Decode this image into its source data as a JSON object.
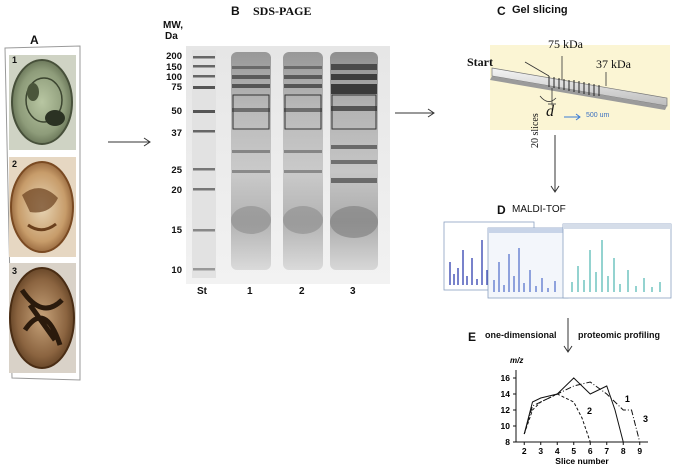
{
  "panel_a": {
    "letter": "A",
    "images": [
      {
        "label": "1"
      },
      {
        "label": "2"
      },
      {
        "label": "3"
      }
    ]
  },
  "panel_b": {
    "letter": "B",
    "title": "SDS-PAGE",
    "mw_label_line1": "MW,",
    "mw_label_line2": "Da",
    "mw_ticks": [
      "200",
      "150",
      "100",
      "75",
      "50",
      "37",
      "25",
      "20",
      "15",
      "10"
    ],
    "lanes": [
      "St",
      "1",
      "2",
      "3"
    ]
  },
  "panel_c": {
    "letter": "C",
    "title": "Gel slicing",
    "start_label": "Start",
    "kda_75": "75 kDa",
    "kda_37": "37 kDa",
    "d_label": "d",
    "scale_label": "500 um",
    "slices_label": "20 slices"
  },
  "panel_d": {
    "letter": "D",
    "title": "MALDI-TOF"
  },
  "panel_e": {
    "letter": "E",
    "label_left": "one-dimensional",
    "label_right": "proteomic profiling"
  },
  "chart_data": {
    "type": "line",
    "ylabel": "m/z",
    "xlabel": "Slice number",
    "x_ticks": [
      "2",
      "3",
      "4",
      "5",
      "6",
      "7",
      "8",
      "9"
    ],
    "y_ticks": [
      "8",
      "10",
      "12",
      "14",
      "16"
    ],
    "xlim": [
      1.5,
      9.5
    ],
    "ylim": [
      8,
      17
    ],
    "series": [
      {
        "name": "1",
        "x": [
          2,
          2.5,
          3,
          4,
          5,
          6,
          7,
          7.5,
          8
        ],
        "y": [
          9,
          13,
          13.5,
          14,
          16,
          14,
          15,
          12,
          8
        ],
        "dash": "none"
      },
      {
        "name": "2",
        "x": [
          2,
          2.5,
          3,
          4,
          5,
          5.5,
          6
        ],
        "y": [
          9,
          12,
          13,
          14,
          13,
          11,
          8
        ],
        "dash": "3,2"
      },
      {
        "name": "3",
        "x": [
          2,
          2.5,
          3,
          4,
          5,
          6,
          7,
          8,
          8.5,
          9
        ],
        "y": [
          9,
          12.5,
          13,
          14,
          15,
          15.5,
          14,
          12,
          12,
          8
        ],
        "dash": "6,2,1,2"
      }
    ]
  }
}
